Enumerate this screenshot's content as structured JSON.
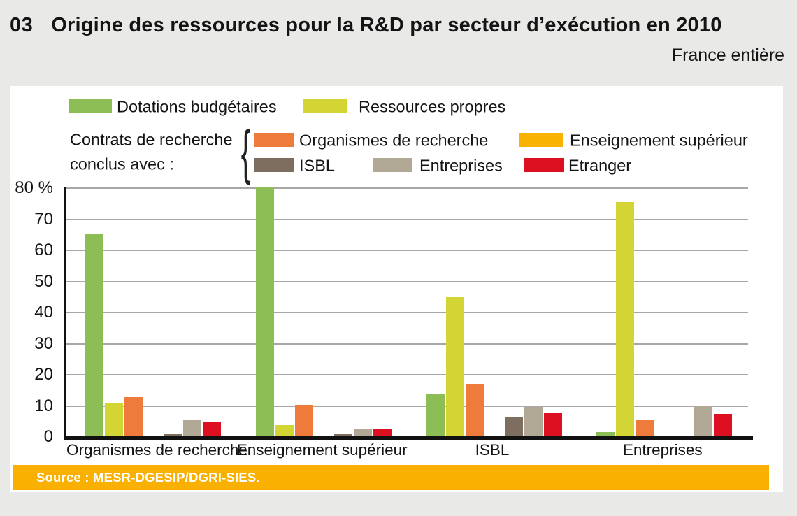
{
  "header": {
    "number": "03",
    "title": "Origine des ressources pour la R&D par secteur d’exécution en 2010",
    "subtitle": "France entière"
  },
  "legend": {
    "row1": [
      {
        "label": "Dotations budgétaires"
      },
      {
        "label": "Ressources propres"
      }
    ],
    "contracts_label_line1": "Contrats de recherche",
    "contracts_label_line2": "conclus avec :",
    "brace": "{",
    "row2": [
      {
        "label": "Organismes de recherche"
      },
      {
        "label": "Enseignement supérieur"
      }
    ],
    "row3": [
      {
        "label": "ISBL"
      },
      {
        "label": "Entreprises"
      },
      {
        "label": "Etranger"
      }
    ]
  },
  "source": {
    "text": "Source : MESR-DGESIP/DGRI-SIES.",
    "bar_color": "#F9B000"
  },
  "chart_data": {
    "type": "bar",
    "categories": [
      "Organismes de recherche",
      "Enseignement supérieur",
      "ISBL",
      "Entreprises"
    ],
    "series": [
      {
        "name": "Dotations budgétaires",
        "color": "#8CBE55",
        "values": [
          65,
          79.9,
          13.4,
          1.4
        ]
      },
      {
        "name": "Ressources propres",
        "color": "#D3D535",
        "values": [
          10.8,
          3.7,
          44.8,
          75.2
        ]
      },
      {
        "name": "Contrats de recherche conclus avec : Organismes de recherche",
        "color": "#EE7B3C",
        "values": [
          12.6,
          10.1,
          16.8,
          5.5
        ]
      },
      {
        "name": "Contrats de recherche conclus avec : Enseignement supérieur",
        "color": "#F9B200",
        "values": [
          0,
          0,
          0.3,
          0
        ]
      },
      {
        "name": "Contrats de recherche conclus avec : ISBL",
        "color": "#7E6E5F",
        "values": [
          0.7,
          0.6,
          6.3,
          0
        ]
      },
      {
        "name": "Contrats de recherche conclus avec : Entreprises",
        "color": "#B1A995",
        "values": [
          5.3,
          2.2,
          9.4,
          9.8
        ]
      },
      {
        "name": "Contrats de recherche conclus avec : Etranger",
        "color": "#DC1021",
        "values": [
          4.7,
          2.5,
          7.7,
          7.1
        ]
      }
    ],
    "ylim": [
      0,
      80
    ],
    "ytick_step": 10,
    "y_ticks": [
      "80 %",
      "70",
      "60",
      "50",
      "40",
      "30",
      "20",
      "10",
      "0"
    ],
    "grid": true,
    "legend_position": "top"
  }
}
